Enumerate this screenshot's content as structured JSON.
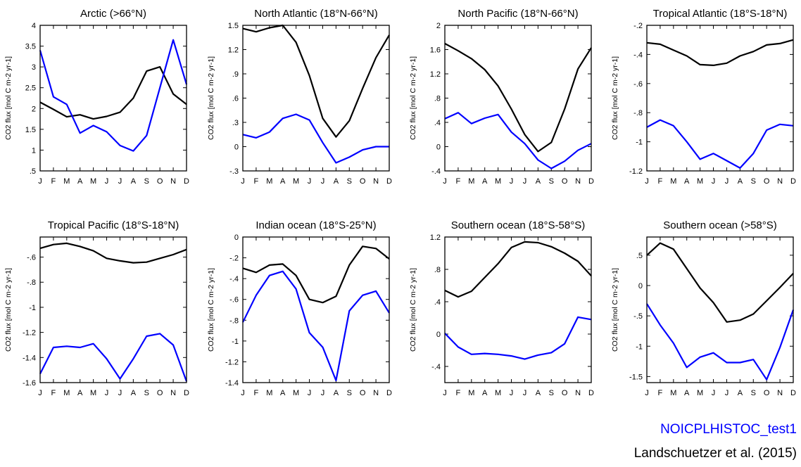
{
  "months": [
    "J",
    "F",
    "M",
    "A",
    "M",
    "J",
    "J",
    "A",
    "S",
    "O",
    "N",
    "D"
  ],
  "legend": {
    "model_label": "NOICPLHISTOC_test1",
    "obs_label": "Landschuetzer et al. (2015)",
    "model_color": "#0000ff",
    "obs_color": "#000000"
  },
  "chart_data": [
    {
      "type": "line",
      "title": "Arctic (>66°N)",
      "ylabel": "CO2 flux [mol C m-2 yr-1]",
      "ylim": [
        0.5,
        4
      ],
      "yticks": [
        0.5,
        1,
        1.5,
        2,
        2.5,
        3,
        3.5,
        4
      ],
      "ytick_labels": [
        ".5",
        "1",
        "1.5",
        "2",
        "2.5",
        "3",
        "3.5",
        "4"
      ],
      "series": [
        {
          "name": "Landschuetzer et al. (2015)",
          "color": "#000000",
          "values": [
            2.15,
            1.98,
            1.8,
            1.85,
            1.75,
            1.81,
            1.91,
            2.25,
            2.9,
            3.0,
            2.35,
            2.1
          ]
        },
        {
          "name": "NOICPLHISTOC_test1",
          "color": "#0000ff",
          "values": [
            3.4,
            2.28,
            2.1,
            1.41,
            1.59,
            1.44,
            1.11,
            0.98,
            1.35,
            2.5,
            3.65,
            2.58
          ]
        }
      ]
    },
    {
      "type": "line",
      "title": "North Atlantic (18°N-66°N)",
      "ylabel": "CO2 flux [mol C m-2 yr-1]",
      "ylim": [
        -0.3,
        1.5
      ],
      "yticks": [
        -0.3,
        0,
        0.3,
        0.6,
        0.9,
        1.2,
        1.5
      ],
      "ytick_labels": [
        "-.3",
        "0",
        ".3",
        ".6",
        ".9",
        "1.2",
        "1.5"
      ],
      "series": [
        {
          "name": "Landschuetzer et al. (2015)",
          "color": "#000000",
          "values": [
            1.46,
            1.42,
            1.47,
            1.5,
            1.29,
            0.88,
            0.35,
            0.12,
            0.32,
            0.72,
            1.1,
            1.38
          ]
        },
        {
          "name": "NOICPLHISTOC_test1",
          "color": "#0000ff",
          "values": [
            0.15,
            0.11,
            0.18,
            0.35,
            0.4,
            0.33,
            0.05,
            -0.2,
            -0.13,
            -0.04,
            0.0,
            0.0
          ]
        }
      ]
    },
    {
      "type": "line",
      "title": "North Pacific (18°N-66°N)",
      "ylabel": "CO2 flux [mol C m-2 yr-1]",
      "ylim": [
        -0.4,
        2
      ],
      "yticks": [
        -0.4,
        0,
        0.4,
        0.8,
        1.2,
        1.6,
        2
      ],
      "ytick_labels": [
        "-.4",
        "0",
        ".4",
        ".8",
        "1.2",
        "1.6",
        "2"
      ],
      "series": [
        {
          "name": "Landschuetzer et al. (2015)",
          "color": "#000000",
          "values": [
            1.7,
            1.58,
            1.45,
            1.27,
            1.0,
            0.62,
            0.2,
            -0.08,
            0.07,
            0.62,
            1.28,
            1.63
          ]
        },
        {
          "name": "NOICPLHISTOC_test1",
          "color": "#0000ff",
          "values": [
            0.46,
            0.56,
            0.38,
            0.47,
            0.53,
            0.24,
            0.05,
            -0.22,
            -0.36,
            -0.24,
            -0.06,
            0.05
          ]
        }
      ]
    },
    {
      "type": "line",
      "title": "Tropical Atlantic (18°S-18°N)",
      "ylabel": "CO2 flux [mol C m-2 yr-1]",
      "ylim": [
        -1.2,
        -0.2
      ],
      "yticks": [
        -1.2,
        -1,
        -0.8,
        -0.6,
        -0.4,
        -0.2
      ],
      "ytick_labels": [
        "-1.2",
        "-1",
        "-.8",
        "-.6",
        "-.4",
        "-.2"
      ],
      "series": [
        {
          "name": "Landschuetzer et al. (2015)",
          "color": "#000000",
          "values": [
            -0.32,
            -0.33,
            -0.37,
            -0.41,
            -0.47,
            -0.475,
            -0.46,
            -0.41,
            -0.38,
            -0.335,
            -0.325,
            -0.3
          ]
        },
        {
          "name": "NOICPLHISTOC_test1",
          "color": "#0000ff",
          "values": [
            -0.9,
            -0.85,
            -0.89,
            -1.0,
            -1.12,
            -1.08,
            -1.13,
            -1.18,
            -1.08,
            -0.92,
            -0.88,
            -0.89
          ]
        }
      ]
    },
    {
      "type": "line",
      "title": "Tropical Pacific (18°S-18°N)",
      "ylabel": "CO2 flux [mol C m-2 yr-1]",
      "ylim": [
        -1.6,
        -0.44
      ],
      "yticks": [
        -1.6,
        -1.4,
        -1.2,
        -1,
        -0.8,
        -0.6
      ],
      "ytick_labels": [
        "-1.6",
        "-1.4",
        "-1.2",
        "-1",
        "-.8",
        "-.6"
      ],
      "series": [
        {
          "name": "Landschuetzer et al. (2015)",
          "color": "#000000",
          "values": [
            -0.53,
            -0.5,
            -0.49,
            -0.515,
            -0.55,
            -0.61,
            -0.63,
            -0.645,
            -0.64,
            -0.61,
            -0.58,
            -0.54
          ]
        },
        {
          "name": "NOICPLHISTOC_test1",
          "color": "#0000ff",
          "values": [
            -1.53,
            -1.32,
            -1.31,
            -1.32,
            -1.29,
            -1.41,
            -1.57,
            -1.41,
            -1.23,
            -1.21,
            -1.3,
            -1.59
          ]
        }
      ]
    },
    {
      "type": "line",
      "title": "Indian ocean (18°S-25°N)",
      "ylabel": "CO2 flux [mol C m-2 yr-1]",
      "ylim": [
        -1.4,
        0
      ],
      "yticks": [
        -1.4,
        -1.2,
        -1,
        -0.8,
        -0.6,
        -0.4,
        -0.2,
        0
      ],
      "ytick_labels": [
        "-1.4",
        "-1.2",
        "-1",
        "-.8",
        "-.6",
        "-.4",
        "-.2",
        "0"
      ],
      "series": [
        {
          "name": "Landschuetzer et al. (2015)",
          "color": "#000000",
          "values": [
            -0.3,
            -0.34,
            -0.27,
            -0.26,
            -0.37,
            -0.6,
            -0.63,
            -0.57,
            -0.27,
            -0.09,
            -0.11,
            -0.21
          ]
        },
        {
          "name": "NOICPLHISTOC_test1",
          "color": "#0000ff",
          "values": [
            -0.82,
            -0.56,
            -0.37,
            -0.33,
            -0.5,
            -0.92,
            -1.06,
            -1.38,
            -0.71,
            -0.56,
            -0.52,
            -0.73
          ]
        }
      ]
    },
    {
      "type": "line",
      "title": "Southern ocean (18°S-58°S)",
      "ylabel": "CO2 flux [mol C m-2 yr-1]",
      "ylim": [
        -0.6,
        1.2
      ],
      "yticks": [
        -0.4,
        0,
        0.4,
        0.8,
        1.2
      ],
      "ytick_labels": [
        "-.4",
        "0",
        ".4",
        ".8",
        "1.2"
      ],
      "series": [
        {
          "name": "Landschuetzer et al. (2015)",
          "color": "#000000",
          "values": [
            0.54,
            0.46,
            0.53,
            0.7,
            0.87,
            1.07,
            1.14,
            1.13,
            1.08,
            1.0,
            0.9,
            0.72
          ]
        },
        {
          "name": "NOICPLHISTOC_test1",
          "color": "#0000ff",
          "values": [
            0.01,
            -0.16,
            -0.25,
            -0.24,
            -0.25,
            -0.27,
            -0.31,
            -0.26,
            -0.23,
            -0.12,
            0.21,
            0.18
          ]
        }
      ]
    },
    {
      "type": "line",
      "title": "Southern ocean (>58°S)",
      "ylabel": "CO2 flux [mol C m-2 yr-1]",
      "ylim": [
        -1.6,
        0.8
      ],
      "yticks": [
        -1.5,
        -1,
        -0.5,
        0,
        0.5
      ],
      "ytick_labels": [
        "-1.5",
        "-1",
        "-.5",
        "0",
        ".5"
      ],
      "series": [
        {
          "name": "Landschuetzer et al. (2015)",
          "color": "#000000",
          "values": [
            0.5,
            0.7,
            0.6,
            0.28,
            -0.04,
            -0.28,
            -0.6,
            -0.57,
            -0.47,
            -0.25,
            -0.03,
            0.2
          ]
        },
        {
          "name": "NOICPLHISTOC_test1",
          "color": "#0000ff",
          "values": [
            -0.3,
            -0.65,
            -0.95,
            -1.35,
            -1.18,
            -1.11,
            -1.27,
            -1.27,
            -1.22,
            -1.55,
            -1.02,
            -0.4
          ]
        }
      ]
    }
  ]
}
